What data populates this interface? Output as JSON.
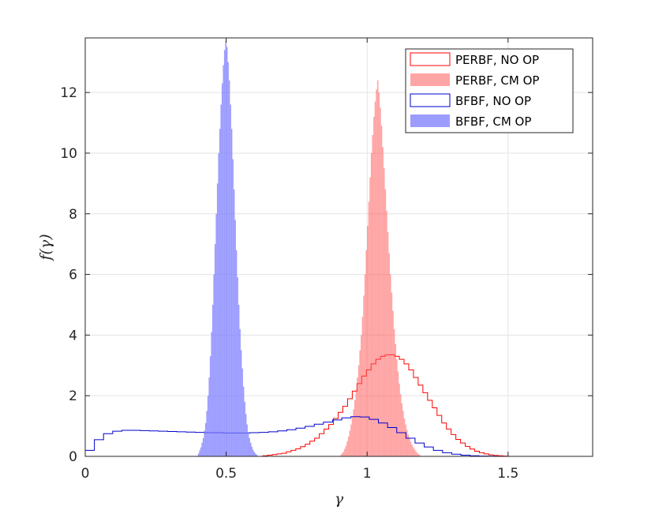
{
  "chart_data": {
    "type": "histogram",
    "xlabel": "γ",
    "ylabel": "f(γ)",
    "xlim": [
      0,
      1.8
    ],
    "ylim": [
      0,
      13.8
    ],
    "xticks": [
      0,
      0.5,
      1,
      1.5
    ],
    "xtick_labels": [
      "0",
      "0.5",
      "1",
      "1.5"
    ],
    "yticks": [
      0,
      2,
      4,
      6,
      8,
      10,
      12
    ],
    "ytick_labels": [
      "0",
      "2",
      "4",
      "6",
      "8",
      "10",
      "12"
    ],
    "grid": true,
    "legend_position": "top-right",
    "series": [
      {
        "name": "PERBF, NO OP",
        "style": "stairs",
        "color": "#ff0000",
        "fill_opacity": 0,
        "bin_width": 0.0167,
        "x_start": 0.63,
        "values": [
          0.02,
          0.04,
          0.06,
          0.08,
          0.1,
          0.15,
          0.2,
          0.25,
          0.32,
          0.4,
          0.5,
          0.6,
          0.75,
          0.9,
          1.05,
          1.25,
          1.45,
          1.65,
          1.9,
          2.15,
          2.4,
          2.65,
          2.85,
          3.05,
          3.2,
          3.3,
          3.35,
          3.35,
          3.3,
          3.2,
          3.05,
          2.85,
          2.6,
          2.35,
          2.1,
          1.85,
          1.6,
          1.35,
          1.1,
          0.9,
          0.72,
          0.56,
          0.44,
          0.33,
          0.24,
          0.17,
          0.12,
          0.08,
          0.05,
          0.03,
          0.02,
          0.01
        ]
      },
      {
        "name": "PERBF, CM OP",
        "style": "filled",
        "color": "#ff5b5b",
        "fill_opacity": 0.55,
        "bin_width": 0.0045,
        "x_start": 0.905,
        "values": [
          0.05,
          0.1,
          0.15,
          0.25,
          0.35,
          0.5,
          0.65,
          0.85,
          1.05,
          1.3,
          1.55,
          1.85,
          2.2,
          2.6,
          3.0,
          3.5,
          4.0,
          4.6,
          5.3,
          6.0,
          6.8,
          7.6,
          8.4,
          9.2,
          10.0,
          10.6,
          11.2,
          11.7,
          12.1,
          12.4,
          12.0,
          11.5,
          10.9,
          10.2,
          9.5,
          8.8,
          8.1,
          7.4,
          6.7,
          6.0,
          5.4,
          4.8,
          4.2,
          3.7,
          3.2,
          2.8,
          2.4,
          2.05,
          1.75,
          1.5,
          1.25,
          1.05,
          0.88,
          0.72,
          0.6,
          0.48,
          0.38,
          0.3,
          0.23,
          0.17,
          0.12,
          0.08,
          0.05
        ]
      },
      {
        "name": "BFBF, NO OP",
        "style": "stairs",
        "color": "#0000cc",
        "fill_opacity": 0,
        "bin_width": 0.0325,
        "x_start": 0.0,
        "values": [
          0.2,
          0.55,
          0.75,
          0.83,
          0.86,
          0.86,
          0.85,
          0.84,
          0.83,
          0.82,
          0.81,
          0.8,
          0.79,
          0.78,
          0.78,
          0.77,
          0.77,
          0.77,
          0.78,
          0.79,
          0.81,
          0.84,
          0.88,
          0.93,
          0.99,
          1.06,
          1.13,
          1.2,
          1.27,
          1.31,
          1.3,
          1.22,
          1.1,
          0.95,
          0.78,
          0.6,
          0.44,
          0.31,
          0.2,
          0.12,
          0.07,
          0.04,
          0.02,
          0.01,
          0.005
        ]
      },
      {
        "name": "BFBF, CM OP",
        "style": "filled",
        "color": "#7b7bff",
        "fill_opacity": 0.75,
        "bin_width": 0.0042,
        "x_start": 0.4,
        "values": [
          0.1,
          0.2,
          0.3,
          0.45,
          0.6,
          0.85,
          1.1,
          1.5,
          2.0,
          2.6,
          3.3,
          4.1,
          5.0,
          6.0,
          7.0,
          8.0,
          9.0,
          10.0,
          10.8,
          11.6,
          12.3,
          12.9,
          13.4,
          13.7,
          13.5,
          13.0,
          12.4,
          11.6,
          10.8,
          9.8,
          8.8,
          7.8,
          6.8,
          5.9,
          5.0,
          4.2,
          3.5,
          2.9,
          2.3,
          1.8,
          1.4,
          1.05,
          0.8,
          0.6,
          0.45,
          0.32,
          0.22,
          0.15,
          0.1,
          0.06
        ]
      }
    ]
  }
}
